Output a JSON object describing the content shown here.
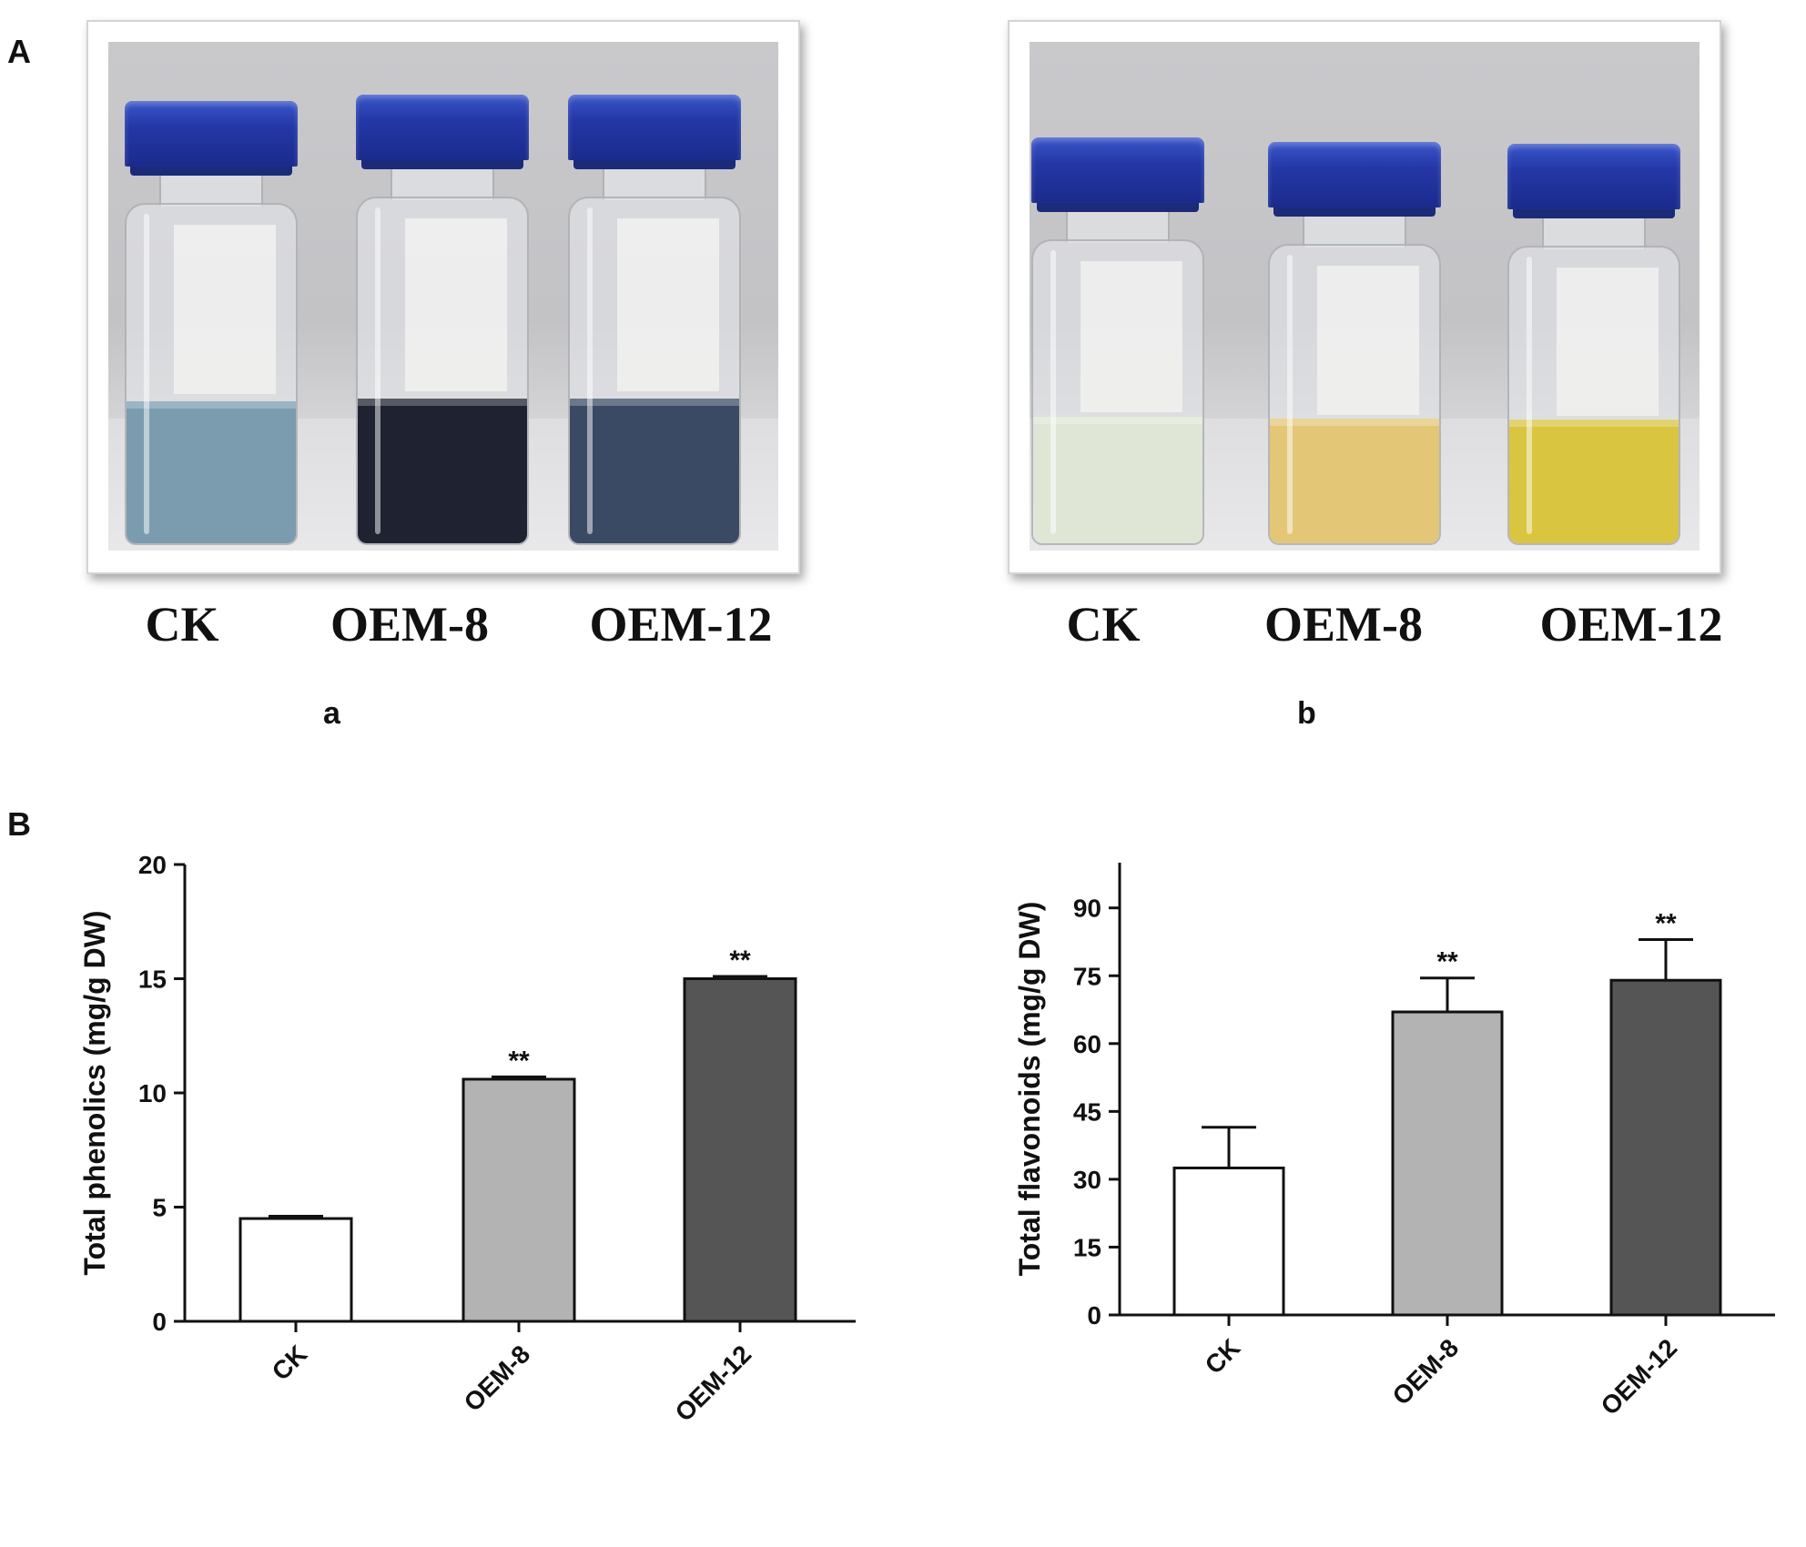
{
  "panels": {
    "A": "A",
    "B": "B",
    "sub_a": "a",
    "sub_b": "b"
  },
  "photos": [
    {
      "labels": [
        "CK",
        "OEM-8",
        "OEM-12"
      ],
      "liquid_colors": [
        "#7a9cae",
        "#1f2230",
        "#3a4a64"
      ]
    },
    {
      "labels": [
        "CK",
        "OEM-8",
        "OEM-12"
      ],
      "liquid_colors": [
        "#dfe6d6",
        "#e3c676",
        "#d9c540"
      ]
    }
  ],
  "chart_data": [
    {
      "type": "bar",
      "categories": [
        "CK",
        "OEM-8",
        "OEM-12"
      ],
      "values": [
        4.5,
        10.6,
        15.0
      ],
      "errors": [
        0.1,
        0.1,
        0.1
      ],
      "annotations": [
        "",
        "**",
        "**"
      ],
      "ylabel": "Total phenolics (mg/g DW)",
      "ylim": [
        0,
        20
      ],
      "yticks": [
        0,
        5,
        10,
        15,
        20
      ],
      "bar_colors": [
        "#ffffff",
        "#b3b3b3",
        "#555555"
      ]
    },
    {
      "type": "bar",
      "categories": [
        "CK",
        "OEM-8",
        "OEM-12"
      ],
      "values": [
        32.5,
        67.0,
        74.0
      ],
      "errors": [
        9.0,
        7.5,
        9.0
      ],
      "annotations": [
        "",
        "**",
        "**"
      ],
      "ylabel": "Total flavonoids (mg/g DW)",
      "ylim": [
        0,
        100
      ],
      "yticks": [
        0,
        15,
        30,
        45,
        60,
        75,
        90
      ],
      "bar_colors": [
        "#ffffff",
        "#b3b3b3",
        "#555555"
      ]
    }
  ]
}
